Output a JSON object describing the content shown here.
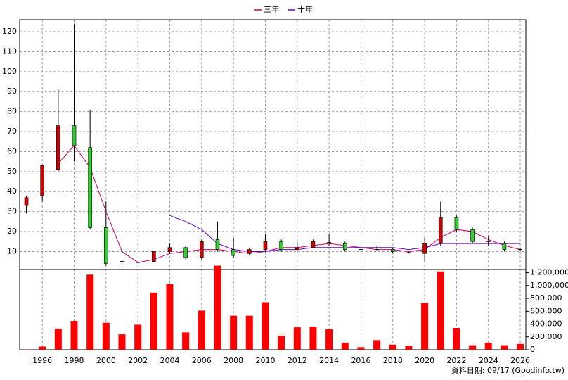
{
  "chart_data": {
    "type": "candlestick",
    "x": [
      1995,
      1996,
      1997,
      1998,
      1999,
      2000,
      2001,
      2002,
      2003,
      2004,
      2005,
      2006,
      2007,
      2008,
      2009,
      2010,
      2011,
      2012,
      2013,
      2014,
      2015,
      2016,
      2017,
      2018,
      2019,
      2020,
      2021,
      2022,
      2023,
      2024,
      2025,
      2026
    ],
    "open": [
      33,
      38,
      51,
      73,
      62,
      22,
      5,
      4.5,
      5,
      10,
      12,
      7,
      16,
      11,
      9,
      11,
      15,
      11,
      12,
      14.5,
      14,
      11,
      11,
      11,
      9.5,
      9,
      14,
      27,
      21,
      15,
      14,
      11
    ],
    "close": [
      37,
      53,
      73,
      63,
      22,
      4,
      5,
      4.5,
      10,
      12,
      7,
      15,
      11,
      8,
      11,
      15,
      11,
      12,
      15,
      14.5,
      11,
      11,
      11,
      10,
      9.5,
      14,
      27,
      21,
      15,
      15,
      11,
      11
    ],
    "high": [
      38,
      53,
      91,
      124,
      81,
      35,
      6,
      5,
      10,
      14,
      13,
      16,
      25,
      17,
      12,
      19,
      16,
      15,
      16,
      19,
      15,
      12,
      13,
      12,
      10,
      17,
      35,
      28,
      22,
      18,
      15,
      12
    ],
    "low": [
      29,
      35,
      50,
      55,
      21,
      3,
      3,
      4,
      5,
      9,
      6,
      6,
      10,
      7,
      8,
      10,
      10,
      10,
      12,
      13,
      10,
      10,
      10,
      9,
      9,
      5,
      13,
      20,
      14,
      13,
      10,
      10
    ],
    "up_color": "#cc0000",
    "down_color": "#33cc33",
    "flat_color": "#000000",
    "volume": {
      "color": "#ff0000",
      "axis": "y2",
      "values": [
        3000,
        50000,
        330000,
        450000,
        1170000,
        420000,
        240000,
        390000,
        890000,
        1020000,
        270000,
        610000,
        1310000,
        530000,
        530000,
        740000,
        220000,
        350000,
        360000,
        320000,
        110000,
        40000,
        150000,
        80000,
        60000,
        730000,
        1220000,
        340000,
        70000,
        110000,
        70000,
        90000
      ]
    },
    "series": [
      {
        "name": "三年",
        "color": "#cc0066",
        "values": [
          null,
          null,
          54,
          63,
          52,
          30,
          10,
          4.5,
          6,
          9,
          10,
          11,
          11,
          10,
          9,
          10,
          12,
          12,
          13,
          14,
          13,
          12,
          11,
          11,
          10,
          11,
          17,
          21,
          20,
          16,
          13,
          11
        ]
      },
      {
        "name": "十年",
        "color": "#6600cc",
        "values": [
          null,
          null,
          null,
          null,
          null,
          null,
          null,
          null,
          null,
          28,
          25,
          21,
          14,
          11,
          10,
          10,
          11,
          11,
          12,
          12,
          12,
          12,
          12,
          12,
          11,
          12,
          14,
          14,
          14,
          14,
          14,
          14
        ]
      }
    ],
    "xlim": [
      1994.58,
      2026.35
    ],
    "xticks": [
      1996,
      1998,
      2000,
      2002,
      2004,
      2006,
      2008,
      2010,
      2012,
      2014,
      2016,
      2018,
      2020,
      2022,
      2024,
      2026
    ],
    "ylim": [
      1,
      126
    ],
    "yticks": [
      10,
      20,
      30,
      40,
      50,
      60,
      70,
      80,
      90,
      100,
      110,
      120
    ],
    "y2lim": [
      0,
      1250000
    ],
    "y2ticks": [
      0,
      {
        "value": 200000,
        "label": "200,000"
      },
      {
        "value": 400000,
        "label": "400,000"
      },
      {
        "value": 600000,
        "label": "600,000"
      },
      {
        "value": 800000,
        "label": "800,000"
      },
      {
        "value": 1000000,
        "label": "1,000,000"
      },
      {
        "value": 1200000,
        "label": "1,200,000"
      }
    ],
    "grid": true,
    "source": "資料日期: 09/17 (Goodinfo.tw)"
  }
}
